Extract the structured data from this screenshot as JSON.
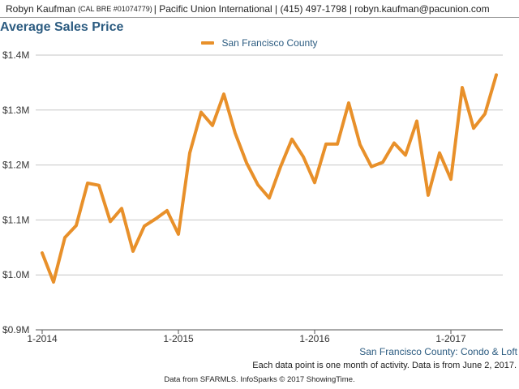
{
  "header": {
    "agent_name": "Robyn Kaufman",
    "license": "(CAL BRE #01074779)",
    "details": "| Pacific Union International | (415) 497-1798 | robyn.kaufman@pacunion.com"
  },
  "chart_data": {
    "type": "line",
    "title": "Average Sales Price",
    "subtitle": "San Francisco County: Condo & Loft",
    "xlabel": "",
    "ylabel": "",
    "ylim": [
      900000,
      1400000
    ],
    "yticks": [
      900000,
      1000000,
      1100000,
      1200000,
      1300000,
      1400000
    ],
    "ytick_labels": [
      "$0.9M",
      "$1.0M",
      "$1.1M",
      "$1.2M",
      "$1.3M",
      "$1.4M"
    ],
    "xticks": [
      "2014-01",
      "2015-01",
      "2016-01",
      "2017-01"
    ],
    "xtick_labels": [
      "1-2014",
      "1-2015",
      "1-2016",
      "1-2017"
    ],
    "grid": true,
    "legend_position": "top-center",
    "series": [
      {
        "name": "San Francisco County",
        "color": "#e8902a",
        "x": [
          "2014-01",
          "2014-02",
          "2014-03",
          "2014-04",
          "2014-05",
          "2014-06",
          "2014-07",
          "2014-08",
          "2014-09",
          "2014-10",
          "2014-11",
          "2014-12",
          "2015-01",
          "2015-02",
          "2015-03",
          "2015-04",
          "2015-05",
          "2015-06",
          "2015-07",
          "2015-08",
          "2015-09",
          "2015-10",
          "2015-11",
          "2015-12",
          "2016-01",
          "2016-02",
          "2016-03",
          "2016-04",
          "2016-05",
          "2016-06",
          "2016-07",
          "2016-08",
          "2016-09",
          "2016-10",
          "2016-11",
          "2016-12",
          "2017-01",
          "2017-02",
          "2017-03",
          "2017-04",
          "2017-05"
        ],
        "values": [
          1040000,
          987000,
          1068000,
          1090000,
          1167000,
          1163000,
          1097000,
          1121000,
          1043000,
          1089000,
          1102000,
          1117000,
          1074000,
          1222000,
          1296000,
          1272000,
          1329000,
          1258000,
          1204000,
          1164000,
          1140000,
          1197000,
          1247000,
          1215000,
          1168000,
          1238000,
          1238000,
          1313000,
          1237000,
          1197000,
          1205000,
          1240000,
          1218000,
          1280000,
          1145000,
          1222000,
          1174000,
          1341000,
          1267000,
          1293000,
          1364000
        ]
      }
    ]
  },
  "footer": {
    "note": "Each data point is one month of activity. Data is from June 2, 2017.",
    "credit": "Data from SFARMLS. InfoSparks © 2017 ShowingTime."
  }
}
